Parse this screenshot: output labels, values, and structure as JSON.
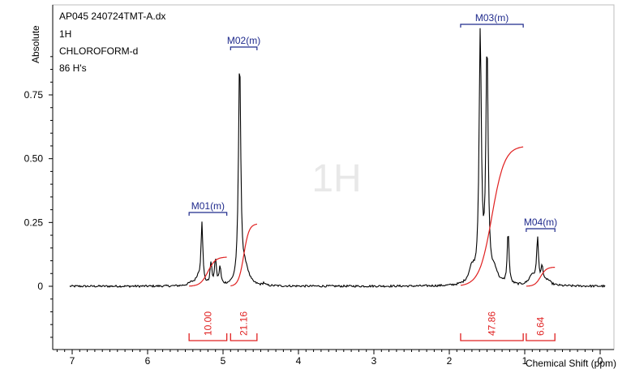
{
  "info": {
    "lines": [
      "AP045 240724TMT-A.dx",
      "1H",
      "CHLOROFORM-d",
      "86 H's"
    ]
  },
  "watermark": "1H",
  "colors": {
    "spectrum": "#000000",
    "integral": "#e02020",
    "multiplet": "#1f2a8c",
    "watermark": "#e8e8e8"
  },
  "chart_data": {
    "type": "line",
    "title": "",
    "xlabel": "Chemical Shift (ppm)",
    "ylabel": "Absolute",
    "x_reversed": true,
    "xlim": [
      7.2,
      -0.2
    ],
    "ylim": [
      -0.22,
      1.02
    ],
    "x_ticks": [
      "7",
      "6",
      "5",
      "4",
      "3",
      "2",
      "1",
      "0"
    ],
    "x_tick_values": [
      7,
      6,
      5,
      4,
      3,
      2,
      1,
      0
    ],
    "y_ticks": [
      "0",
      "0.25",
      "0.50",
      "0.75"
    ],
    "y_tick_values": [
      0,
      0.25,
      0.5,
      0.75
    ],
    "grid": false,
    "peaks": [
      {
        "x": 5.28,
        "y": 0.24
      },
      {
        "x": 5.16,
        "y": 0.085
      },
      {
        "x": 5.1,
        "y": 0.1
      },
      {
        "x": 5.04,
        "y": 0.07
      },
      {
        "x": 4.78,
        "y": 0.88
      },
      {
        "x": 4.46,
        "y": 0.01
      },
      {
        "x": 1.59,
        "y": 0.97
      },
      {
        "x": 1.5,
        "y": 0.92
      },
      {
        "x": 1.22,
        "y": 0.21
      },
      {
        "x": 0.83,
        "y": 0.18
      },
      {
        "x": 0.77,
        "y": 0.07
      }
    ],
    "multiplets": [
      {
        "label": "M01(m)",
        "from": 5.45,
        "to": 4.95
      },
      {
        "label": "M02(m)",
        "from": 4.9,
        "to": 4.55
      },
      {
        "label": "M03(m)",
        "from": 1.85,
        "to": 1.02
      },
      {
        "label": "M04(m)",
        "from": 0.98,
        "to": 0.6
      }
    ],
    "integrals": [
      {
        "label": "10.00",
        "from": 5.45,
        "to": 4.95
      },
      {
        "label": "21.16",
        "from": 4.9,
        "to": 4.55
      },
      {
        "label": "47.86",
        "from": 1.85,
        "to": 1.02
      },
      {
        "label": "6.64",
        "from": 0.98,
        "to": 0.6
      }
    ],
    "integral_curves": [
      {
        "from": 5.45,
        "to": 4.95,
        "y_start": 0.0,
        "y_end": 0.115
      },
      {
        "from": 4.9,
        "to": 4.55,
        "y_start": 0.0,
        "y_end": 0.245
      },
      {
        "from": 1.85,
        "to": 1.02,
        "y_start": 0.0,
        "y_end": 0.55
      },
      {
        "from": 0.98,
        "to": 0.6,
        "y_start": 0.0,
        "y_end": 0.075
      }
    ]
  }
}
